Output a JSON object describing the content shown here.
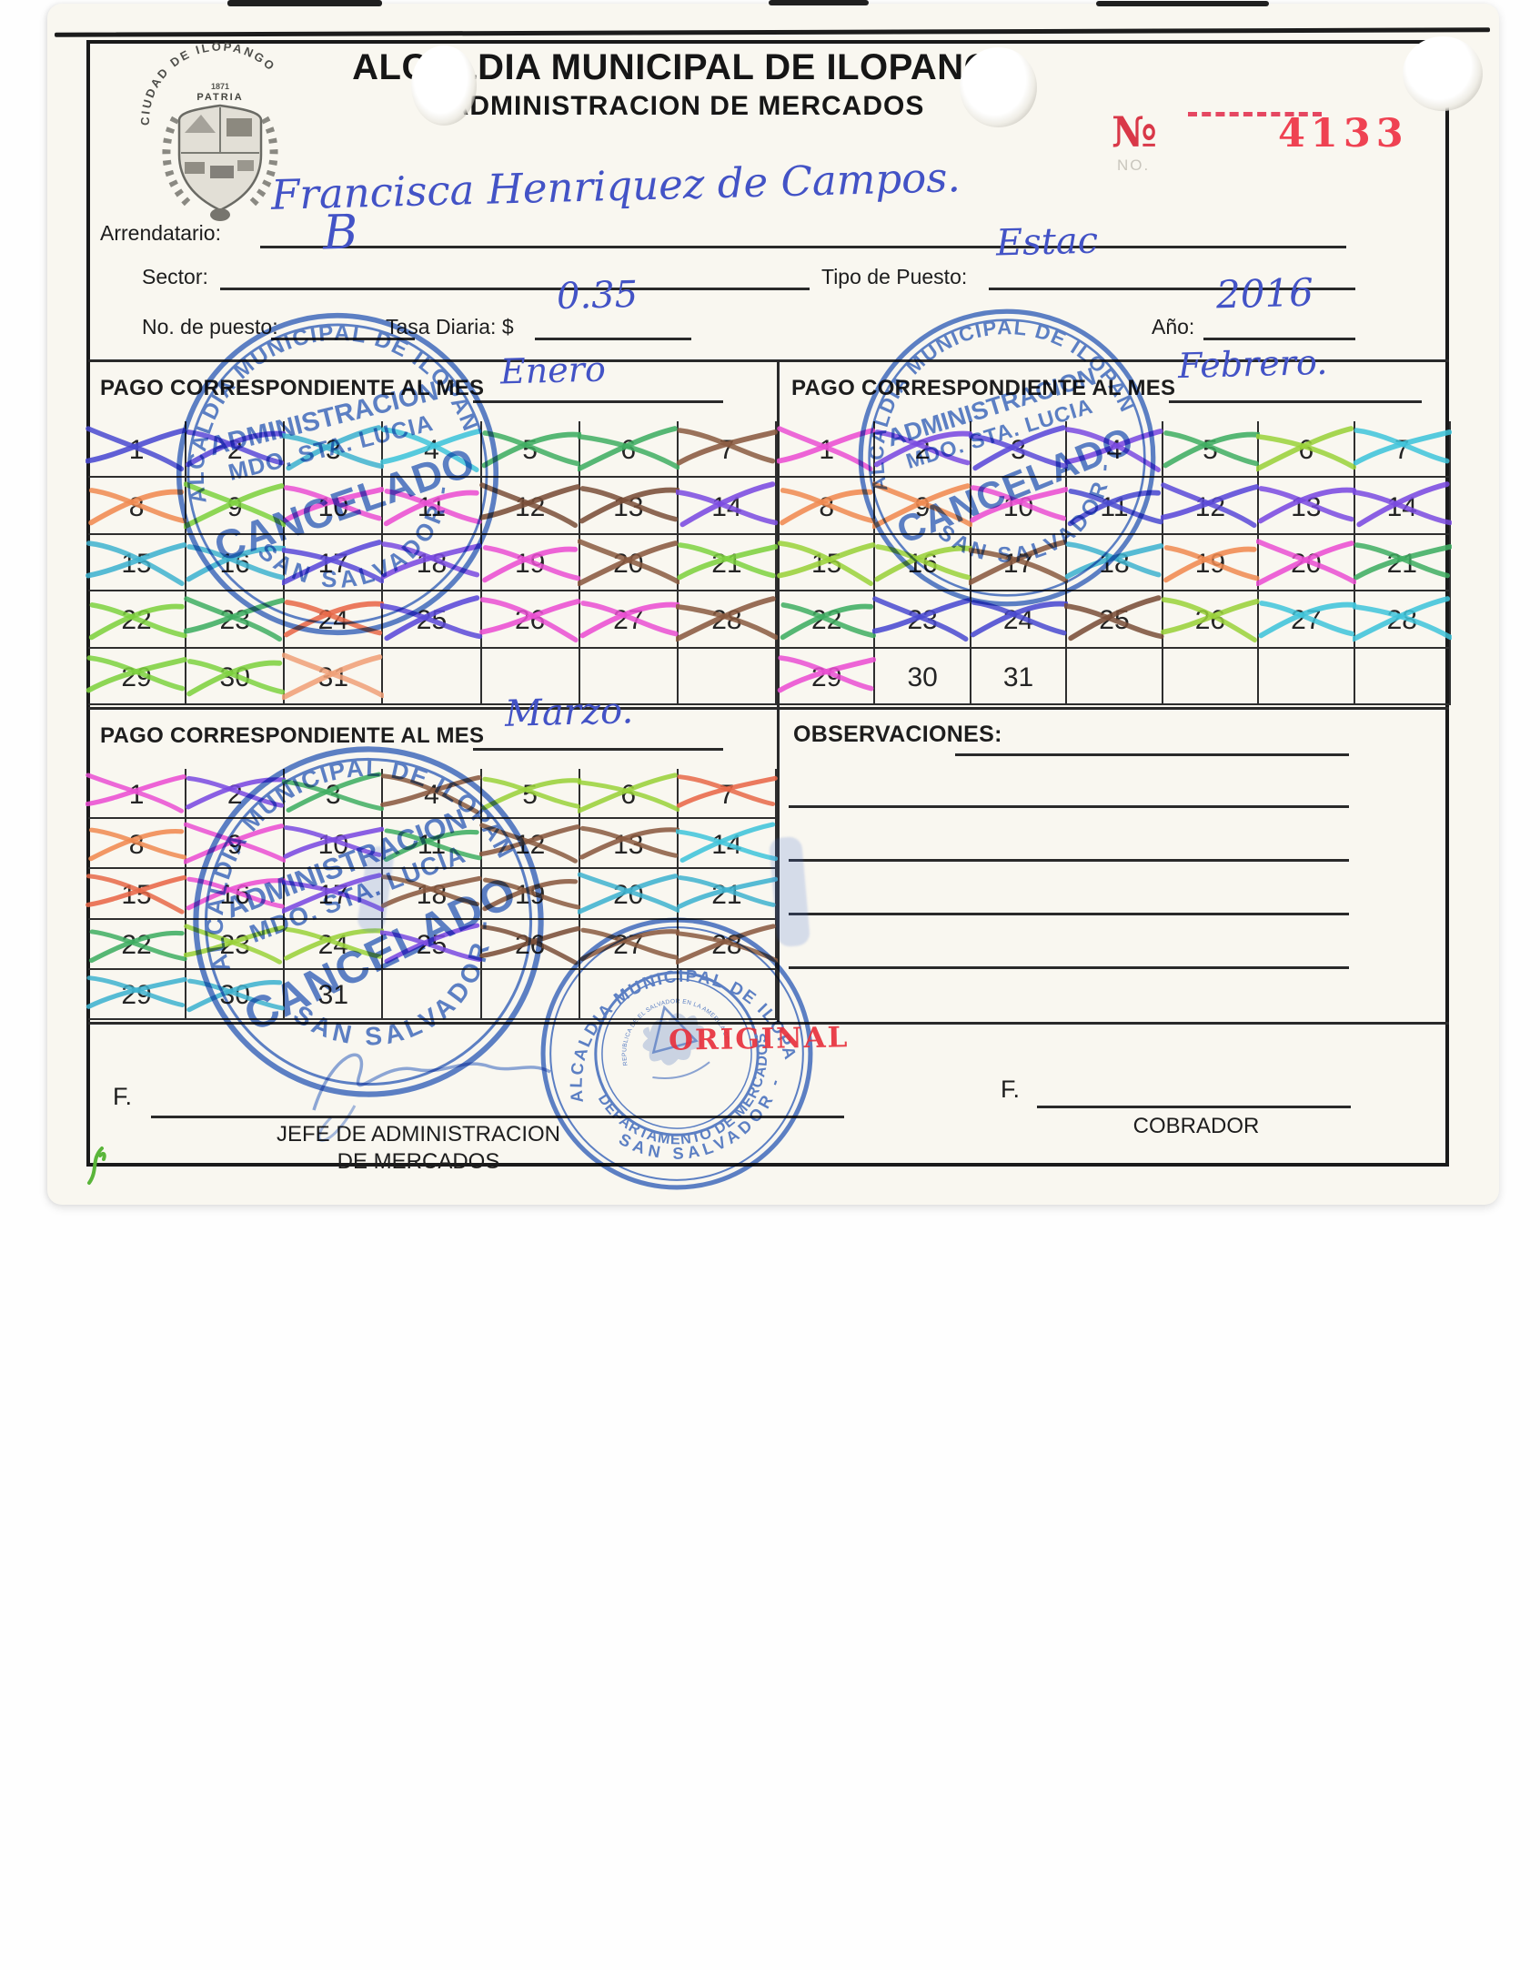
{
  "header": {
    "seal_arc_text": "CIUDAD DE ILOPANGO",
    "seal_line1": "1871",
    "seal_line2": "PATRIA",
    "title": "ALCALDIA MUNICIPAL DE ILOPANGO",
    "subtitle": "ADMINISTRACION DE MERCADOS",
    "receipt_no_label": "№",
    "receipt_no_ghost": "NO.",
    "receipt_no": "4133",
    "number_color": "#e8323e"
  },
  "fields": {
    "arrendatario_label": "Arrendatario:",
    "arrendatario_value": "Francisca Henriquez de Campos.",
    "sector_label": "Sector:",
    "sector_value": "B",
    "tipo_label": "Tipo de Puesto:",
    "tipo_value": "Estac",
    "puesto_label": "No. de puesto:",
    "puesto_value": "",
    "tasa_label": "Tasa Diaria: $",
    "tasa_value": "0.35",
    "anio_label": "Año:",
    "anio_value": "2016"
  },
  "payment": {
    "section_label": "PAGO CORRESPONDIENTE AL MES",
    "months": [
      {
        "name": "Enero",
        "day_count": 31,
        "cross_colors": [
          "#4a4ad0",
          "#5a49d8",
          "#3fb3cf",
          "#3fc4da",
          "#3fae62",
          "#3fae62",
          "#8a5a40",
          "#f08a50",
          "#7ed23f",
          "#ea4fd2",
          "#ea4fd2",
          "#7a4f38",
          "#7a4f38",
          "#7a4ae0",
          "#3fb3cf",
          "#3fb3cf",
          "#5a49d8",
          "#7a4ae0",
          "#ea4fd2",
          "#8a5a40",
          "#7ed23f",
          "#7ed23f",
          "#3fae62",
          "#e86848",
          "#5a49d8",
          "#ea4fd2",
          "#ea4fd2",
          "#8a5a40",
          "#7ed23f",
          "#7ed23f",
          "#f0a078"
        ]
      },
      {
        "name": "Febrero.",
        "day_count": 31,
        "cross_colors": [
          "#ea4fd2",
          "#7a4ae0",
          "#5a49d8",
          "#7a4ae0",
          "#3fae62",
          "#9ad23a",
          "#3fc4da",
          "#f08a50",
          "#f08a50",
          "#ea4fd2",
          "#4a4ad0",
          "#5a49d8",
          "#7a4ae0",
          "#7a4ae0",
          "#9ad23a",
          "#9ad23a",
          "#8a5a40",
          "#3fb3cf",
          "#f08a50",
          "#ea4fd2",
          "#3fae62",
          "#3fae62",
          "#4a4ad0",
          "#4a4ad0",
          "#7a4f38",
          "#9ad23a",
          "#3fc4da",
          "#3fc4da",
          "#ea4fd2",
          null,
          null
        ]
      },
      {
        "name": "Marzo.",
        "day_count": 31,
        "cross_colors": [
          "#ea4fd2",
          "#7a4ae0",
          "#3fae62",
          "#8a5a40",
          "#9ad23a",
          "#9ad23a",
          "#e86848",
          "#f08a50",
          "#ea4fd2",
          "#7a4ae0",
          "#3fae62",
          "#8a5a40",
          "#8a5a40",
          "#3fc4da",
          "#e86848",
          "#ea4fd2",
          "#7a4ae0",
          "#8a5a40",
          "#8a5a40",
          "#3fb3cf",
          "#3fb3cf",
          "#3fae62",
          "#9ad23a",
          "#9ad23a",
          "#7a4ae0",
          "#7a4f38",
          "#8a5a40",
          "#8a5a40",
          "#3fb3cf",
          "#3fb3cf",
          null
        ]
      }
    ]
  },
  "observaciones": {
    "label": "OBSERVACIONES:",
    "blank_lines": 4
  },
  "stamps": {
    "ink_color": "#3a68c6",
    "cancelado": {
      "arc_top": "ALCALDIA MUNICIPAL DE ILOPANGO",
      "line1": "ADMINISTRACION",
      "line2": "MDO. STA. LUCIA",
      "word": "CANCELADO",
      "arc_bottom": "SAN SALVADOR -"
    },
    "departamento": {
      "arc_top": "ALCALDIA MUNICIPAL DE ILOPANGO",
      "arc_bottom_inner": "DEPARTAMENTO DE MERCADOS",
      "arc_bottom_outer": "SAN SALVADOR -",
      "inner_arc": "REPUBLICA DE EL SALVADOR EN LA AMERICA CENTRAL"
    },
    "original_label": "ORIGINAL"
  },
  "signatures": {
    "f_label": "F.",
    "left_role_line1": "JEFE DE ADMINISTRACION",
    "left_role_line2": "DE MERCADOS",
    "right_role": "COBRADOR"
  }
}
